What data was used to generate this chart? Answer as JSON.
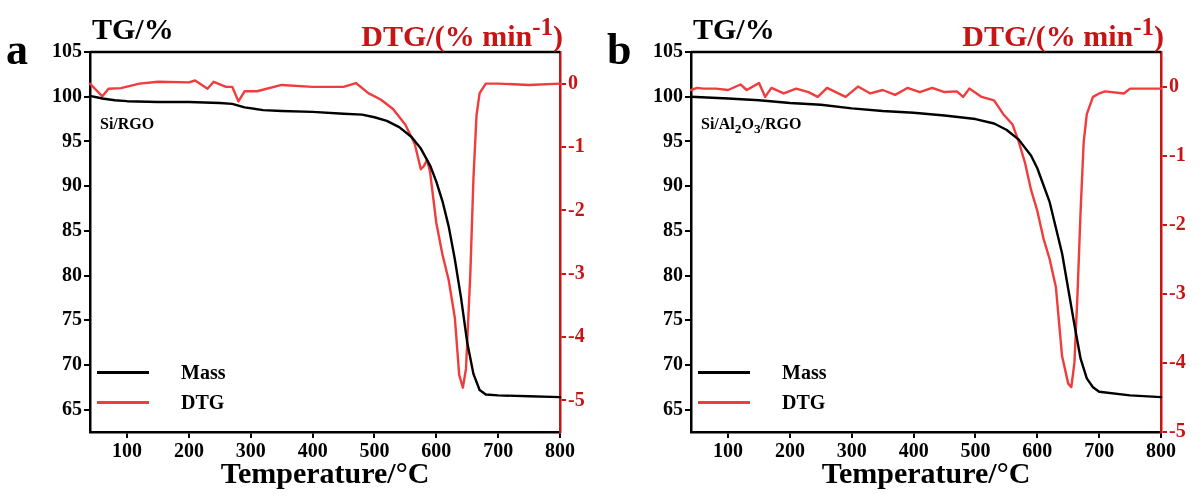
{
  "chart_data": [
    {
      "type": "line",
      "xlabel": "Temperature/°C",
      "ylabel": "TG/%",
      "y2label": "DTG/(% min$^{-1}$)",
      "annotations": [
        "a",
        "Si/RGO"
      ],
      "xlim": [
        40,
        800
      ],
      "xticks": [
        100,
        200,
        300,
        400,
        500,
        600,
        700,
        800
      ],
      "ylim": [
        62.5,
        105
      ],
      "yticks": [
        65,
        70,
        75,
        80,
        85,
        90,
        95,
        100,
        105
      ],
      "y2lim": [
        -5.5,
        0.5
      ],
      "y2ticks": [
        -5,
        -4,
        -3,
        -2,
        -1,
        0
      ],
      "grid": false,
      "legend": "bottom left",
      "marker": "none",
      "line_style": "solid",
      "series": [
        {
          "name": "Mass",
          "color": "#000000",
          "x": [
            40,
            60,
            80,
            100,
            150,
            200,
            250,
            270,
            290,
            320,
            350,
            400,
            450,
            480,
            500,
            520,
            540,
            560,
            575,
            590,
            600,
            610,
            620,
            630,
            640,
            650,
            660,
            670,
            680,
            700,
            750,
            800
          ],
          "values": [
            100.1,
            99.8,
            99.6,
            99.5,
            99.4,
            99.4,
            99.3,
            99.2,
            98.8,
            98.5,
            98.4,
            98.3,
            98.1,
            98.0,
            97.7,
            97.3,
            96.6,
            95.5,
            94.2,
            92.3,
            90.5,
            88.3,
            85.5,
            81.8,
            77.5,
            72.5,
            69.0,
            67.2,
            66.7,
            66.6,
            66.5,
            66.4
          ]
        },
        {
          "name": "DTG",
          "color": "#f03c3c",
          "axis": "y2",
          "x": [
            40,
            50,
            60,
            70,
            90,
            120,
            150,
            200,
            210,
            230,
            240,
            260,
            270,
            280,
            290,
            310,
            350,
            400,
            450,
            470,
            490,
            510,
            530,
            550,
            565,
            575,
            580,
            585,
            590,
            600,
            610,
            620,
            630,
            637,
            643,
            648,
            655,
            660,
            665,
            670,
            680,
            700,
            750,
            800
          ],
          "values": [
            0,
            -0.1,
            -0.2,
            -0.08,
            -0.07,
            0,
            0.03,
            0.02,
            0.05,
            -0.08,
            0.03,
            -0.05,
            -0.05,
            -0.28,
            -0.12,
            -0.12,
            -0.02,
            -0.05,
            -0.05,
            0.01,
            -0.15,
            -0.25,
            -0.4,
            -0.65,
            -0.95,
            -1.35,
            -1.3,
            -1.2,
            -1.4,
            -2.2,
            -2.7,
            -3.1,
            -3.7,
            -4.6,
            -4.8,
            -4.5,
            -3.0,
            -1.5,
            -0.5,
            -0.15,
            0,
            0,
            -0.02,
            0
          ]
        }
      ]
    },
    {
      "type": "line",
      "xlabel": "Temperature/°C",
      "ylabel": "TG/%",
      "y2label": "DTG/(% min$^{-1}$)",
      "annotations": [
        "b",
        "Si/Al$_{2}$O$_{3}$/RGO"
      ],
      "xlim": [
        40,
        800
      ],
      "xticks": [
        100,
        200,
        300,
        400,
        500,
        600,
        700,
        800
      ],
      "ylim": [
        62.5,
        105
      ],
      "yticks": [
        65,
        70,
        75,
        80,
        85,
        90,
        95,
        100,
        105
      ],
      "y2lim": [
        -5,
        0.5
      ],
      "y2ticks": [
        -5,
        -4,
        -3,
        -2,
        -1,
        0
      ],
      "grid": false,
      "legend": "bottom left",
      "marker": "none",
      "line_style": "solid",
      "series": [
        {
          "name": "Mass",
          "color": "#000000",
          "x": [
            40,
            100,
            150,
            200,
            250,
            300,
            350,
            400,
            450,
            500,
            530,
            550,
            570,
            590,
            600,
            620,
            640,
            650,
            660,
            670,
            680,
            690,
            700,
            750,
            800
          ],
          "values": [
            100.0,
            99.8,
            99.6,
            99.3,
            99.1,
            98.7,
            98.4,
            98.2,
            97.9,
            97.5,
            97.0,
            96.3,
            95.2,
            93.4,
            92.0,
            88.2,
            82.5,
            78.5,
            74.5,
            70.7,
            68.5,
            67.5,
            67.0,
            66.6,
            66.4
          ]
        },
        {
          "name": "DTG",
          "color": "#f03c3c",
          "axis": "y2",
          "x": [
            40,
            50,
            60,
            80,
            100,
            120,
            130,
            150,
            160,
            170,
            190,
            210,
            230,
            245,
            260,
            290,
            310,
            330,
            350,
            370,
            390,
            410,
            430,
            450,
            470,
            480,
            490,
            510,
            530,
            545,
            560,
            570,
            580,
            590,
            600,
            610,
            620,
            630,
            640,
            650,
            655,
            660,
            665,
            670,
            675,
            680,
            690,
            700,
            710,
            740,
            750,
            800
          ],
          "values": [
            -0.05,
            -0.02,
            -0.03,
            -0.03,
            -0.05,
            0.03,
            -0.05,
            0.05,
            -0.15,
            -0.02,
            -0.1,
            -0.03,
            -0.08,
            -0.15,
            -0.02,
            -0.15,
            0,
            -0.1,
            -0.05,
            -0.12,
            -0.02,
            -0.08,
            -0.02,
            -0.08,
            -0.07,
            -0.15,
            -0.03,
            -0.15,
            -0.2,
            -0.4,
            -0.55,
            -0.8,
            -1.1,
            -1.5,
            -1.8,
            -2.2,
            -2.5,
            -2.9,
            -3.9,
            -4.3,
            -4.35,
            -4.0,
            -3.0,
            -1.8,
            -0.8,
            -0.4,
            -0.15,
            -0.1,
            -0.07,
            -0.1,
            -0.03,
            -0.03
          ]
        }
      ]
    }
  ]
}
